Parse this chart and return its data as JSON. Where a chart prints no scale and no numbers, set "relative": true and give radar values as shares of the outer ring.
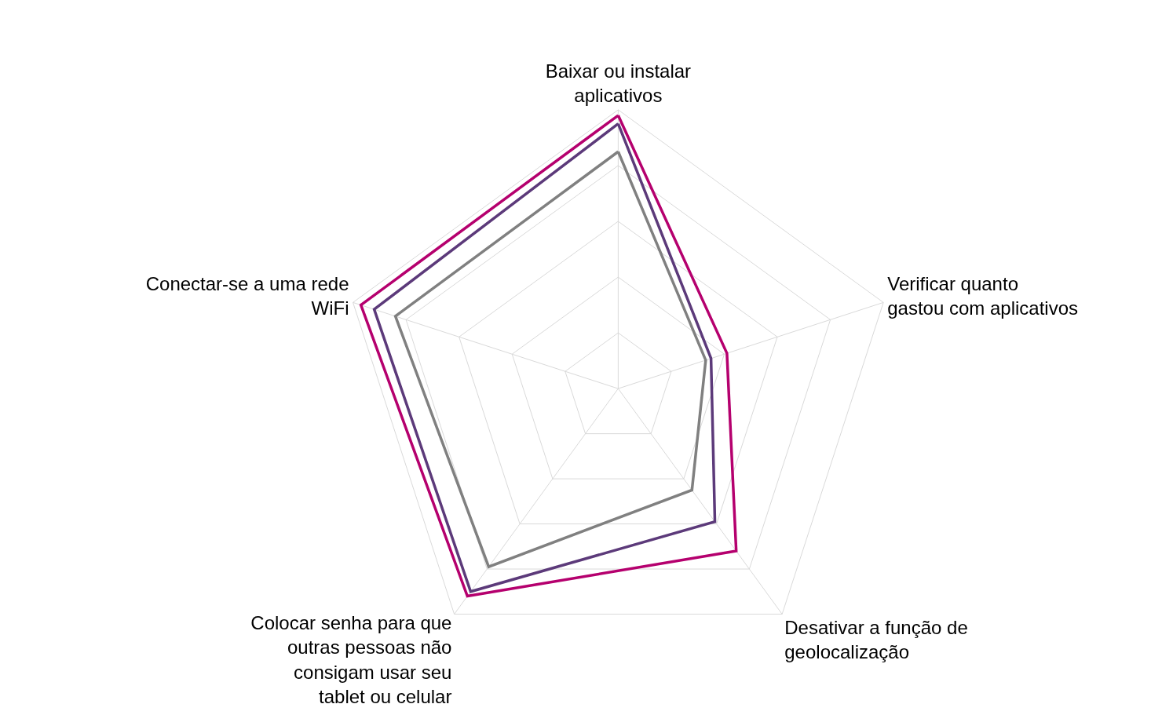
{
  "chart_data": {
    "type": "radar",
    "relative": true,
    "grid": true,
    "marker": "none",
    "legend": false,
    "categories": [
      "Baixar ou instalar aplicativos",
      "Verificar quanto gastou com aplicativos",
      "Desativar a função de geolocalização",
      "Colocar senha para que outras pessoas não consigam usar seu tablet ou celular",
      "Conectar-se a uma rede WiFi"
    ],
    "series": [
      {
        "color": "#808080",
        "values": [
          0.85,
          0.33,
          0.45,
          0.79,
          0.84
        ]
      },
      {
        "color": "#5c3a7a",
        "values": [
          0.95,
          0.35,
          0.59,
          0.9,
          0.92
        ]
      },
      {
        "color": "#b5006e",
        "values": [
          0.98,
          0.41,
          0.72,
          0.92,
          0.97
        ]
      }
    ]
  }
}
